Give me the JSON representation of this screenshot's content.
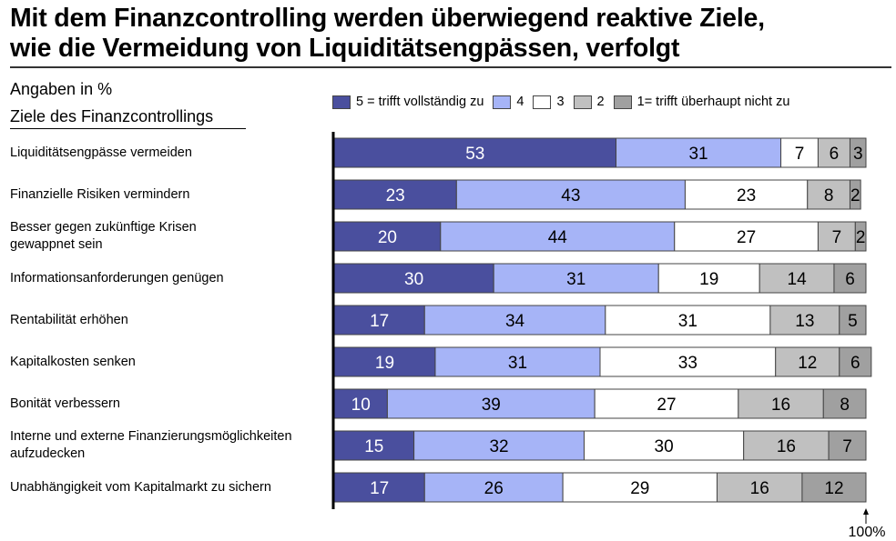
{
  "title_line1": "Mit dem Finanzcontrolling werden überwiegend reaktive Ziele,",
  "title_line2": "wie die Vermeidung von Liquiditätsengpässen, verfolgt",
  "unit_label": "Angaben in %",
  "category_header": "Ziele des Finanzcontrollings",
  "chart_data": {
    "type": "bar",
    "orientation": "horizontal",
    "stacked": true,
    "title": "Mit dem Finanzcontrolling werden überwiegend reaktive Ziele, wie die Vermeidung von Liquiditätsengpässen, verfolgt",
    "xlabel": "",
    "ylabel": "Ziele des Finanzcontrollings",
    "unit": "Angaben in %",
    "xlim": [
      0,
      100
    ],
    "end_marker_label": "100%",
    "legend_position": "top",
    "categories": [
      "Liquiditätsengpässe vermeiden",
      "Finanzielle Risiken vermindern",
      "Besser gegen zukünftige Krisen gewappnet sein",
      "Informationsanforderungen genügen",
      "Rentabilität erhöhen",
      "Kapitalkosten senken",
      "Bonität verbessern",
      "Interne und externe Finanzierungsmöglichkeiten aufzudecken",
      "Unabhängigkeit vom Kapitalmarkt zu sichern"
    ],
    "category_lines": [
      [
        "Liquiditätsengpässe vermeiden"
      ],
      [
        "Finanzielle Risiken vermindern"
      ],
      [
        "Besser gegen zukünftige Krisen",
        "gewappnet sein"
      ],
      [
        "Informationsanforderungen genügen"
      ],
      [
        "Rentabilität erhöhen"
      ],
      [
        "Kapitalkosten senken"
      ],
      [
        "Bonität verbessern"
      ],
      [
        "Interne und externe Finanzierungsmöglichkeiten",
        "aufzudecken"
      ],
      [
        "Unabhängigkeit vom Kapitalmarkt zu sichern"
      ]
    ],
    "series": [
      {
        "name": "5 = trifft vollständig zu",
        "color": "#4a4f9e",
        "text_color": "#ffffff",
        "values": [
          53,
          23,
          20,
          30,
          17,
          19,
          10,
          15,
          17
        ]
      },
      {
        "name": "4",
        "color": "#a6b4f7",
        "text_color": "#000000",
        "values": [
          31,
          43,
          44,
          31,
          34,
          31,
          39,
          32,
          26
        ]
      },
      {
        "name": "3",
        "color": "#ffffff",
        "text_color": "#000000",
        "values": [
          7,
          23,
          27,
          19,
          31,
          33,
          27,
          30,
          29
        ]
      },
      {
        "name": "2",
        "color": "#c0c0c0",
        "text_color": "#000000",
        "values": [
          6,
          8,
          7,
          14,
          13,
          12,
          16,
          16,
          16
        ]
      },
      {
        "name": "1= trifft überhaupt nicht zu",
        "color": "#a0a0a0",
        "text_color": "#000000",
        "values": [
          3,
          2,
          2,
          6,
          5,
          6,
          8,
          7,
          12
        ]
      }
    ]
  }
}
